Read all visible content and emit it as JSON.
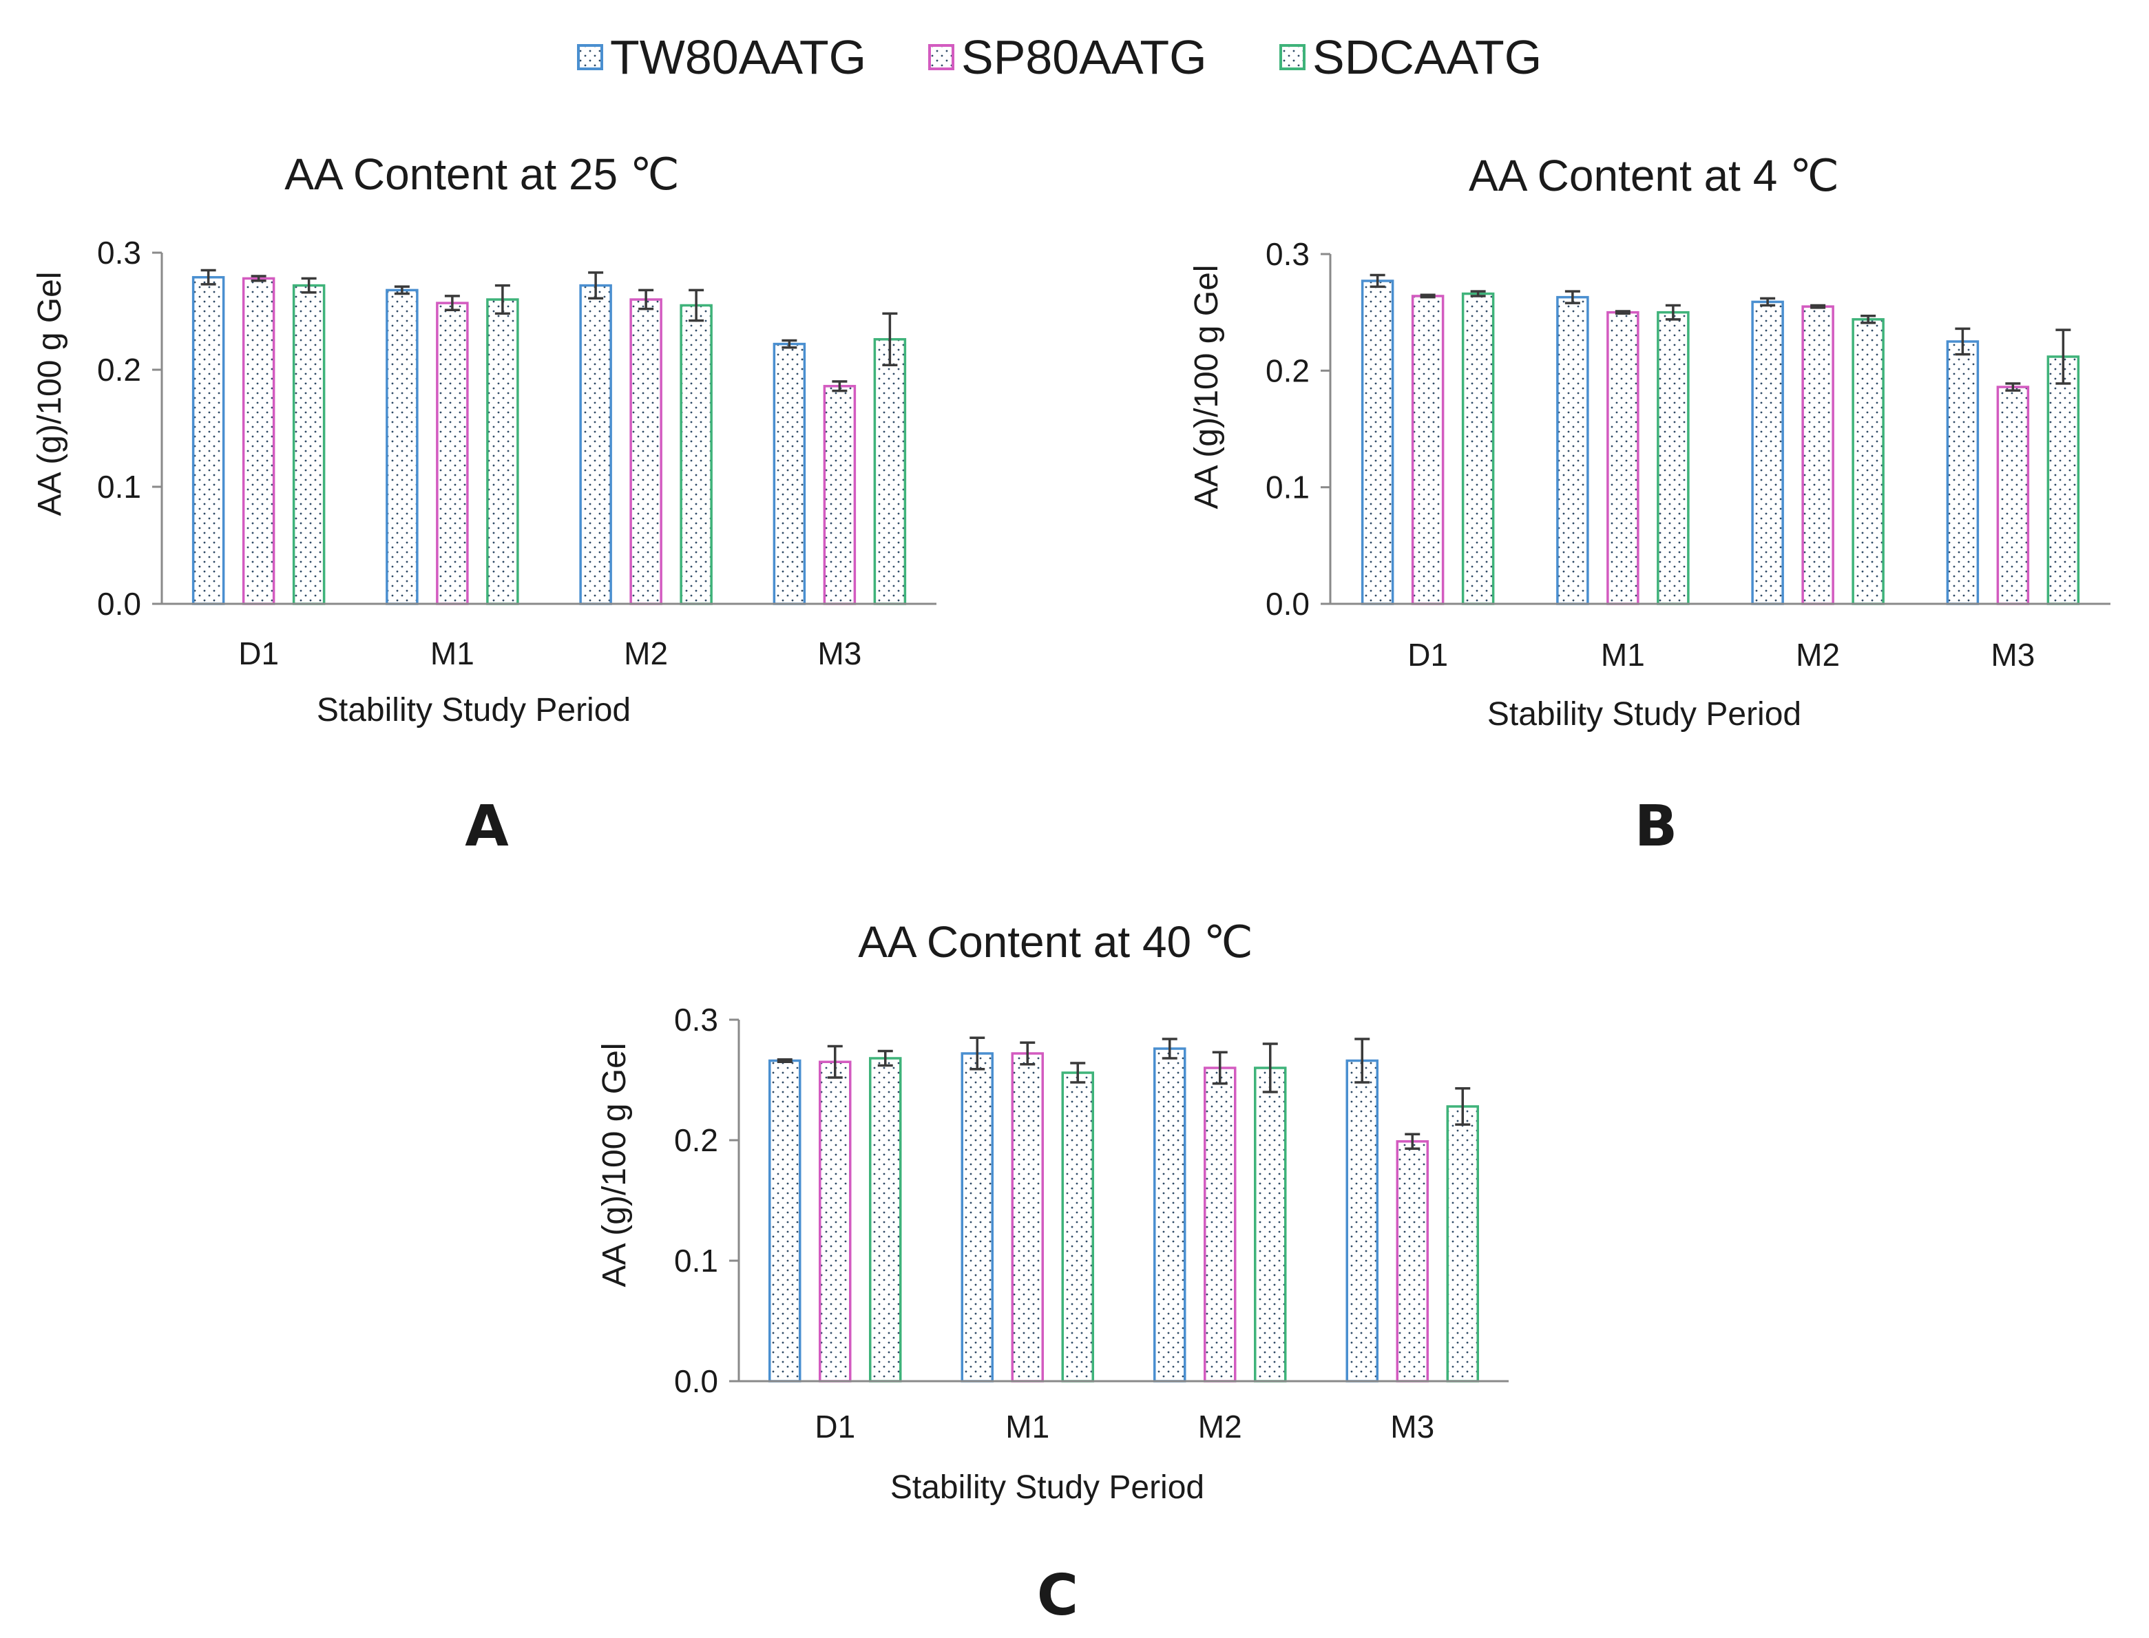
{
  "legend": [
    {
      "name": "TW80AATG",
      "color": "#4a8fd0"
    },
    {
      "name": "SP80AATG",
      "color": "#d35bc0"
    },
    {
      "name": "SDCAATG",
      "color": "#3fb37a"
    }
  ],
  "dot_color": "#2f4a66",
  "chart_data": [
    {
      "type": "bar",
      "panel": "A",
      "title": "AA Content at 25 ℃",
      "xlabel": "Stability Study Period",
      "ylabel": "AA (g)/100 g Gel",
      "ylim": [
        0,
        0.3
      ],
      "yticks": [
        "0.0",
        "0.1",
        "0.2",
        "0.3"
      ],
      "categories": [
        "D1",
        "M1",
        "M2",
        "M3"
      ],
      "series": [
        {
          "name": "TW80AATG",
          "values": [
            0.279,
            0.268,
            0.272,
            0.222
          ],
          "errors": [
            0.006,
            0.003,
            0.011,
            0.003
          ]
        },
        {
          "name": "SP80AATG",
          "values": [
            0.278,
            0.257,
            0.26,
            0.186
          ],
          "errors": [
            0.002,
            0.006,
            0.008,
            0.004
          ]
        },
        {
          "name": "SDCAATG",
          "values": [
            0.272,
            0.26,
            0.255,
            0.226
          ],
          "errors": [
            0.006,
            0.012,
            0.013,
            0.022
          ]
        }
      ]
    },
    {
      "type": "bar",
      "panel": "B",
      "title": "AA Content at 4 ℃",
      "xlabel": "Stability Study Period",
      "ylabel": "AA (g)/100 g Gel",
      "ylim": [
        0,
        0.3
      ],
      "yticks": [
        "0.0",
        "0.1",
        "0.2",
        "0.3"
      ],
      "categories": [
        "D1",
        "M1",
        "M2",
        "M3"
      ],
      "series": [
        {
          "name": "TW80AATG",
          "values": [
            0.277,
            0.263,
            0.259,
            0.225
          ],
          "errors": [
            0.005,
            0.005,
            0.003,
            0.011
          ]
        },
        {
          "name": "SP80AATG",
          "values": [
            0.264,
            0.25,
            0.255,
            0.186
          ],
          "errors": [
            0.001,
            0.001,
            0.001,
            0.003
          ]
        },
        {
          "name": "SDCAATG",
          "values": [
            0.266,
            0.25,
            0.244,
            0.212
          ],
          "errors": [
            0.002,
            0.006,
            0.003,
            0.023
          ]
        }
      ]
    },
    {
      "type": "bar",
      "panel": "C",
      "title": "AA Content at 40 ℃",
      "xlabel": "Stability Study Period",
      "ylabel": "AA (g)/100 g Gel",
      "ylim": [
        0,
        0.3
      ],
      "yticks": [
        "0.0",
        "0.1",
        "0.2",
        "0.3"
      ],
      "categories": [
        "D1",
        "M1",
        "M2",
        "M3"
      ],
      "series": [
        {
          "name": "TW80AATG",
          "values": [
            0.266,
            0.272,
            0.276,
            0.266
          ],
          "errors": [
            0.001,
            0.013,
            0.008,
            0.018
          ]
        },
        {
          "name": "SP80AATG",
          "values": [
            0.265,
            0.272,
            0.26,
            0.199
          ],
          "errors": [
            0.013,
            0.009,
            0.013,
            0.006
          ]
        },
        {
          "name": "SDCAATG",
          "values": [
            0.268,
            0.256,
            0.26,
            0.228
          ],
          "errors": [
            0.006,
            0.008,
            0.02,
            0.015
          ]
        }
      ]
    }
  ]
}
